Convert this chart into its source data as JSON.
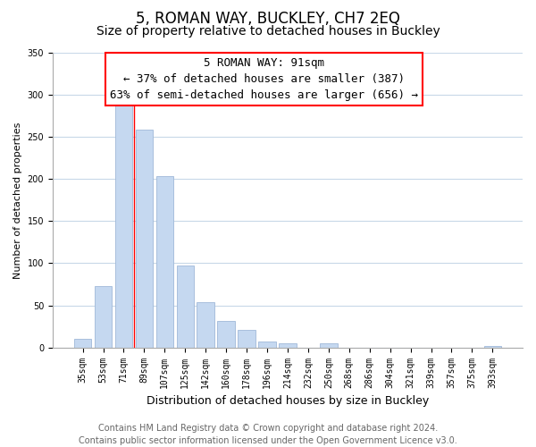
{
  "title": "5, ROMAN WAY, BUCKLEY, CH7 2EQ",
  "subtitle": "Size of property relative to detached houses in Buckley",
  "xlabel": "Distribution of detached houses by size in Buckley",
  "ylabel": "Number of detached properties",
  "categories": [
    "35sqm",
    "53sqm",
    "71sqm",
    "89sqm",
    "107sqm",
    "125sqm",
    "142sqm",
    "160sqm",
    "178sqm",
    "196sqm",
    "214sqm",
    "232sqm",
    "250sqm",
    "268sqm",
    "286sqm",
    "304sqm",
    "321sqm",
    "339sqm",
    "357sqm",
    "375sqm",
    "393sqm"
  ],
  "values": [
    10,
    73,
    287,
    259,
    204,
    97,
    54,
    31,
    21,
    7,
    5,
    0,
    5,
    0,
    0,
    0,
    0,
    0,
    0,
    0,
    2
  ],
  "bar_color": "#c5d8f0",
  "bar_edge_color": "#a0b8d8",
  "annotation_box_text": "5 ROMAN WAY: 91sqm\n← 37% of detached houses are smaller (387)\n63% of semi-detached houses are larger (656) →",
  "vline_x": 2.5,
  "ylim": [
    0,
    350
  ],
  "yticks": [
    0,
    50,
    100,
    150,
    200,
    250,
    300,
    350
  ],
  "footer_line1": "Contains HM Land Registry data © Crown copyright and database right 2024.",
  "footer_line2": "Contains public sector information licensed under the Open Government Licence v3.0.",
  "background_color": "#ffffff",
  "grid_color": "#c8d8e8",
  "title_fontsize": 12,
  "subtitle_fontsize": 10,
  "xlabel_fontsize": 9,
  "ylabel_fontsize": 8,
  "tick_fontsize": 7,
  "annotation_fontsize": 9,
  "footer_fontsize": 7
}
